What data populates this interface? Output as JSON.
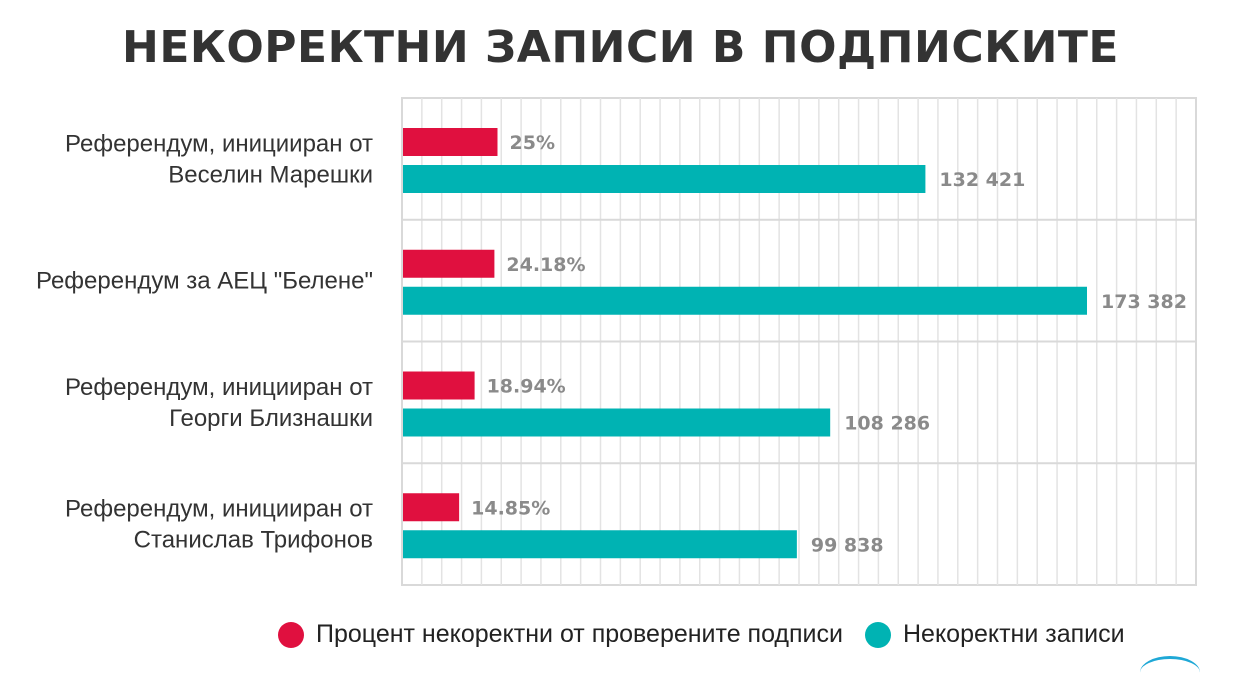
{
  "chart_data": {
    "type": "bar",
    "orientation": "horizontal",
    "title": "НЕКОРЕКТНИ ЗАПИСИ В ПОДПИСКИТЕ",
    "categories": [
      [
        "Референдум, иницииран от",
        "Веселин Марешки"
      ],
      [
        "Референдум за АЕЦ \"Белене\""
      ],
      [
        "Референдум, иницииран от",
        "Георги Близнашки"
      ],
      [
        "Референдум, иницииран от",
        "Станислав Трифонов"
      ]
    ],
    "series": [
      {
        "name": "Процент некоректни от проверените подписи",
        "color": "#e0103f",
        "values": [
          25,
          24.18,
          18.94,
          14.85
        ],
        "labels": [
          "25%",
          "24.18%",
          "18.94%",
          "14.85%"
        ]
      },
      {
        "name": "Некоректни записи",
        "color": "#00b3b3",
        "values": [
          132421,
          173382,
          108286,
          99838
        ],
        "labels": [
          "132 421",
          "173 382",
          "108 286",
          "99 838"
        ]
      }
    ],
    "grid": true,
    "legend_position": "bottom"
  }
}
